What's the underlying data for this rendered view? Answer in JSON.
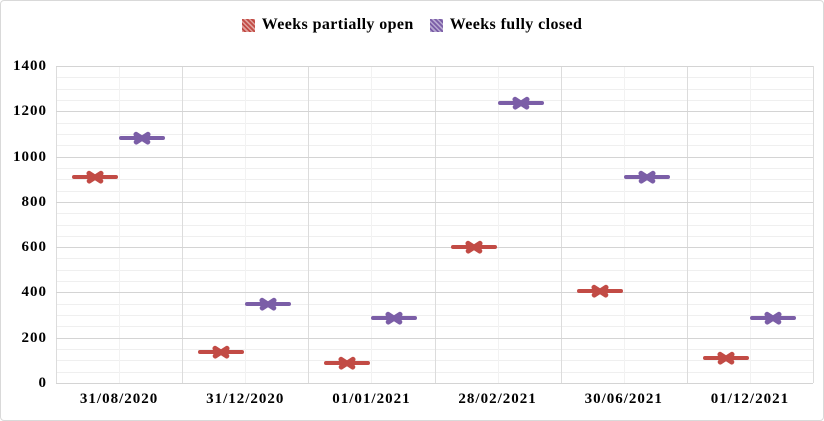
{
  "chart_data": {
    "type": "scatter",
    "marker_style": "x-with-horizontal-dash",
    "title": "",
    "xlabel": "",
    "ylabel": "",
    "categories": [
      "31/08/2020",
      "31/12/2020",
      "01/01/2021",
      "28/02/2021",
      "30/06/2021",
      "01/12/2021"
    ],
    "series": [
      {
        "name": "Weeks partially open",
        "color": "#c24b45",
        "hatch_light": "#dfa09b",
        "values": [
          910,
          135,
          90,
          600,
          405,
          110
        ]
      },
      {
        "name": "Weeks fully closed",
        "color": "#7b5ea7",
        "hatch_light": "#b7a8d0",
        "values": [
          1080,
          350,
          285,
          1235,
          910,
          285
        ]
      }
    ],
    "ylim": [
      0,
      1400
    ],
    "y_major": 200,
    "y_minor": 50,
    "yticks": [
      "0",
      "200",
      "400",
      "600",
      "800",
      "1000",
      "1200",
      "1400"
    ],
    "grid": true,
    "legend_position": "top-center",
    "colors": {
      "grid_major": "#d4d4d4",
      "grid_minor": "#efefef",
      "grid_vertical": "#dcdcdc",
      "grid_vertical_minor": "#f2f2f2",
      "border": "#d9d9d9",
      "text": "#000000",
      "background": "#ffffff"
    }
  }
}
